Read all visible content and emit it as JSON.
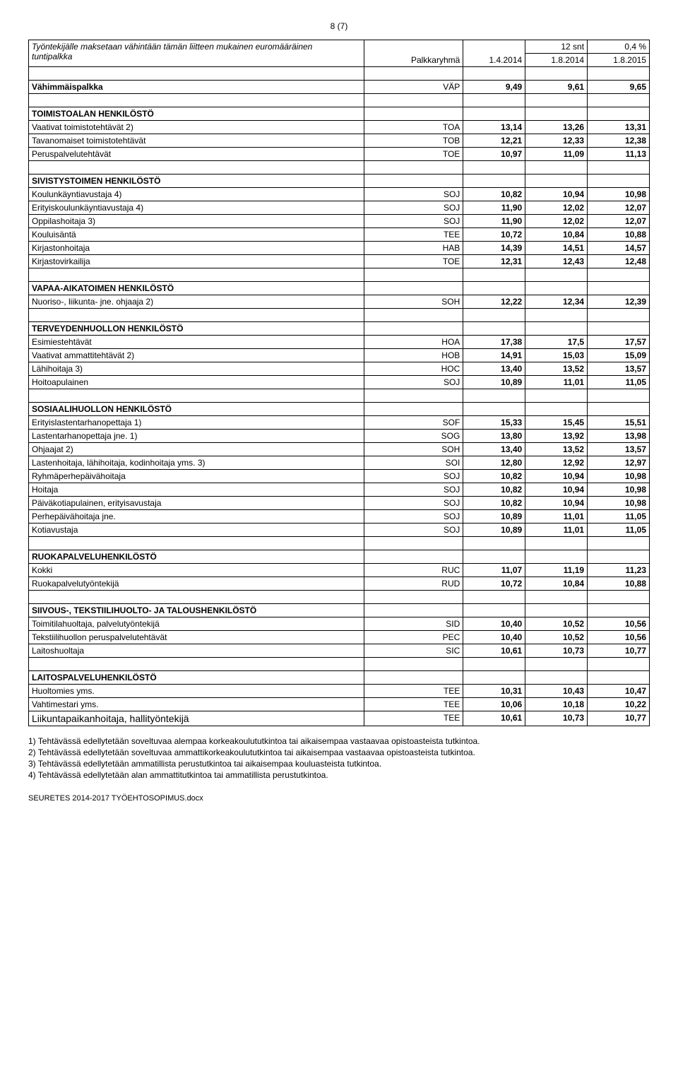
{
  "pageNumber": "8 (7)",
  "header": {
    "line1": "Työntekijälle maksetaan vähintään tämän liitteen mukainen euromääräinen",
    "line2": "tuntipalkka",
    "c2": "Palkkaryhmä",
    "c3": "1.4.2014",
    "h2top": "12 snt",
    "c4": "1.8.2014",
    "h3top": "0,4 %",
    "c5": "1.8.2015"
  },
  "minwage": {
    "label": "Vähimmäispalkka",
    "code": "VÄP",
    "v1": "9,49",
    "v2": "9,61",
    "v3": "9,65"
  },
  "sections": [
    {
      "title": "TOIMISTOALAN HENKILÖSTÖ",
      "rows": [
        {
          "l": "Vaativat toimistotehtävät 2)",
          "c": "TOA",
          "v1": "13,14",
          "v2": "13,26",
          "v3": "13,31"
        },
        {
          "l": "Tavanomaiset toimistotehtävät",
          "c": "TOB",
          "v1": "12,21",
          "v2": "12,33",
          "v3": "12,38"
        },
        {
          "l": "Peruspalvelutehtävät",
          "c": "TOE",
          "v1": "10,97",
          "v2": "11,09",
          "v3": "11,13"
        }
      ]
    },
    {
      "title": "SIVISTYSTOIMEN HENKILÖSTÖ",
      "rows": [
        {
          "l": "Koulunkäyntiavustaja 4)",
          "c": "SOJ",
          "v1": "10,82",
          "v2": "10,94",
          "v3": "10,98"
        },
        {
          "l": "Erityiskoulunkäyntiavustaja 4)",
          "c": "SOJ",
          "v1": "11,90",
          "v2": "12,02",
          "v3": "12,07"
        },
        {
          "l": "Oppilashoitaja 3)",
          "c": "SOJ",
          "v1": "11,90",
          "v2": "12,02",
          "v3": "12,07"
        },
        {
          "l": "Kouluisäntä",
          "c": "TEE",
          "v1": "10,72",
          "v2": "10,84",
          "v3": "10,88"
        },
        {
          "l": "Kirjastonhoitaja",
          "c": "HAB",
          "v1": "14,39",
          "v2": "14,51",
          "v3": "14,57"
        },
        {
          "l": "Kirjastovirkailija",
          "c": "TOE",
          "v1": "12,31",
          "v2": "12,43",
          "v3": "12,48"
        }
      ]
    },
    {
      "title": "VAPAA-AIKATOIMEN HENKILÖSTÖ",
      "rows": [
        {
          "l": "Nuoriso-, liikunta- jne. ohjaaja 2)",
          "c": "SOH",
          "v1": "12,22",
          "v2": "12,34",
          "v3": "12,39"
        }
      ]
    },
    {
      "title": "TERVEYDENHUOLLON HENKILÖSTÖ",
      "rows": [
        {
          "l": "Esimiestehtävät",
          "c": "HOA",
          "v1": "17,38",
          "v2": "17,5",
          "v3": "17,57"
        },
        {
          "l": "Vaativat ammattitehtävät  2)",
          "c": "HOB",
          "v1": "14,91",
          "v2": "15,03",
          "v3": "15,09"
        },
        {
          "l": "Lähihoitaja 3)",
          "c": "HOC",
          "v1": "13,40",
          "v2": "13,52",
          "v3": "13,57"
        },
        {
          "l": " Hoitoapulainen",
          "c": "SOJ",
          "v1": "10,89",
          "v2": "11,01",
          "v3": "11,05"
        }
      ]
    },
    {
      "title": "SOSIAALIHUOLLON HENKILÖSTÖ",
      "rows": [
        {
          "l": "Erityislastentarhanopettaja  1)",
          "c": "SOF",
          "v1": "15,33",
          "v2": "15,45",
          "v3": "15,51"
        },
        {
          "l": "Lastentarhanopettaja jne.  1)",
          "c": "SOG",
          "v1": "13,80",
          "v2": "13,92",
          "v3": "13,98"
        },
        {
          "l": "Ohjaajat 2)",
          "c": "SOH",
          "v1": "13,40",
          "v2": "13,52",
          "v3": "13,57"
        },
        {
          "l": "Lastenhoitaja,  lähihoitaja, kodinhoitaja yms. 3)",
          "c": "SOI",
          "v1": "12,80",
          "v2": "12,92",
          "v3": "12,97"
        },
        {
          "l": "Ryhmäperhepäivähoitaja",
          "c": "SOJ",
          "v1": "10,82",
          "v2": "10,94",
          "v3": "10,98"
        },
        {
          "l": "Hoitaja",
          "c": "SOJ",
          "v1": "10,82",
          "v2": "10,94",
          "v3": "10,98"
        },
        {
          "l": "Päiväkotiapulainen, erityisavustaja",
          "c": "SOJ",
          "v1": "10,82",
          "v2": "10,94",
          "v3": "10,98"
        },
        {
          "l": "Perhepäivähoitaja jne.",
          "c": "SOJ",
          "v1": "10,89",
          "v2": "11,01",
          "v3": "11,05"
        },
        {
          "l": "Kotiavustaja",
          "c": "SOJ",
          "v1": "10,89",
          "v2": "11,01",
          "v3": "11,05"
        }
      ]
    },
    {
      "title": "RUOKAPALVELUHENKILÖSTÖ",
      "rows": [
        {
          "l": "Kokki",
          "c": "RUC",
          "v1": "11,07",
          "v2": "11,19",
          "v3": "11,23"
        },
        {
          "l": "Ruokapalvelutyöntekijä",
          "c": "RUD",
          "v1": "10,72",
          "v2": "10,84",
          "v3": "10,88"
        }
      ]
    },
    {
      "title": "SIIVOUS-, TEKSTIILIHUOLTO- JA TALOUSHENKILÖSTÖ",
      "rows": [
        {
          "l": "Toimitilahuoltaja, palvelutyöntekijä",
          "c": "SID",
          "v1": "10,40",
          "v2": "10,52",
          "v3": "10,56"
        },
        {
          "l": "Tekstiilihuollon peruspalvelutehtävät",
          "c": "PEC",
          "v1": "10,40",
          "v2": "10,52",
          "v3": "10,56"
        },
        {
          "l": "Laitoshuoltaja",
          "c": "SIC",
          "v1": "10,61",
          "v2": "10,73",
          "v3": "10,77"
        }
      ]
    },
    {
      "title": "LAITOSPALVELUHENKILÖSTÖ",
      "rows": [
        {
          "l": "Huoltomies yms.",
          "c": "TEE",
          "v1": "10,31",
          "v2": "10,43",
          "v3": "10,47"
        },
        {
          "l": "Vahtimestari yms.",
          "c": "TEE",
          "v1": "10,06",
          "v2": "10,18",
          "v3": "10,22"
        },
        {
          "l": "Liikuntapaikanhoitaja, hallityöntekijä",
          "c": "TEE",
          "v1": "10,61",
          "v2": "10,73",
          "v3": "10,77",
          "large": true
        }
      ]
    }
  ],
  "footnotes": [
    "1) Tehtävässä edellytetään soveltuvaa alempaa korkeakoulututkintoa tai aikaisempaa vastaavaa opistoasteista tutkintoa.",
    "2) Tehtävässä edellytetään soveltuvaa ammattikorkeakoulututkintoa tai aikaisempaa vastaavaa opistoasteista tutkintoa.",
    "3) Tehtävässä edellytetään ammatillista perustutkintoa tai aikaisempaa kouluasteista tutkintoa.",
    "4) Tehtävässä edellytetään alan ammattitutkintoa tai ammatillista perustutkintoa."
  ],
  "footerFile": "SEURETES 2014-2017 TYÖEHTOSOPIMUS.docx"
}
